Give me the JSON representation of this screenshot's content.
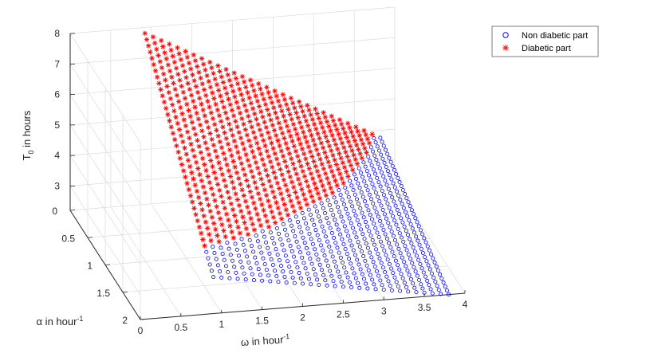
{
  "chart_data": {
    "type": "scatter",
    "view": "3d",
    "title": "",
    "x_axis": {
      "label_main": "ω in hour",
      "label_sup": "-1",
      "range": [
        0,
        4
      ],
      "ticks": [
        "0",
        "0.5",
        "1",
        "1.5",
        "2",
        "2.5",
        "3",
        "3.5",
        "4"
      ]
    },
    "y_axis": {
      "label_main": "α in hour",
      "label_sup": "-1",
      "range": [
        0,
        2
      ],
      "ticks": [
        "0",
        "0.5",
        "1",
        "1.5",
        "2"
      ]
    },
    "z_axis": {
      "label_main": "T",
      "label_sub": "0",
      "label_rest": " in hours",
      "range": [
        2.2,
        8
      ],
      "ticks": [
        "3",
        "4",
        "5",
        "6",
        "7",
        "8"
      ]
    },
    "grid": true,
    "legend": {
      "placement": "top-right"
    },
    "series": [
      {
        "name": "Non diabetic part",
        "marker": "circle",
        "color": "#0000ff",
        "condition": "T0 <= 3.95"
      },
      {
        "name": "Diabetic part",
        "marker": "asterisk",
        "color": "#ff0000",
        "condition": "T0 > 3.95"
      }
    ],
    "surface": {
      "x_start": 0.9,
      "x_end": 3.8,
      "x_count": 30,
      "y_start": 0.05,
      "y_end": 2.0,
      "y_count": 40,
      "samples": [
        {
          "x": 0.9,
          "y": 0.05,
          "T0": 7.9
        },
        {
          "x": 0.9,
          "y": 2.0,
          "T0": 3.4
        },
        {
          "x": 3.8,
          "y": 0.05,
          "T0": 3.85
        },
        {
          "x": 3.8,
          "y": 2.0,
          "T0": 2.2
        }
      ]
    }
  }
}
